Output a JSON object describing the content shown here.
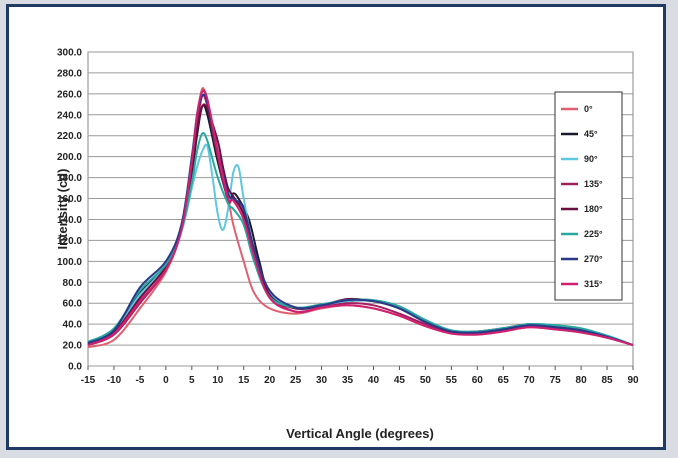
{
  "chart_data": {
    "type": "line",
    "title": "",
    "xlabel": "Vertical Angle (degrees)",
    "ylabel": "Intensity (cd)",
    "xlim": [
      -15,
      90
    ],
    "ylim": [
      0,
      300
    ],
    "x_ticks": [
      -15,
      -10,
      -5,
      0,
      5,
      10,
      15,
      20,
      25,
      30,
      35,
      40,
      45,
      50,
      55,
      60,
      65,
      70,
      75,
      80,
      85,
      90
    ],
    "y_ticks": [
      "0.0",
      "20.0",
      "40.0",
      "60.0",
      "80.0",
      "100.0",
      "120.0",
      "140.0",
      "160.0",
      "180.0",
      "200.0",
      "220.0",
      "240.0",
      "260.0",
      "280.0",
      "300.0"
    ],
    "grid": "horizontal",
    "legend": "right",
    "series": [
      {
        "name": "0°",
        "color": "#e06070",
        "points": [
          [
            -15,
            18
          ],
          [
            -10,
            25
          ],
          [
            -5,
            55
          ],
          [
            0,
            90
          ],
          [
            3,
            130
          ],
          [
            5,
            190
          ],
          [
            6,
            235
          ],
          [
            7,
            265
          ],
          [
            8,
            250
          ],
          [
            10,
            200
          ],
          [
            12,
            160
          ],
          [
            13,
            135
          ],
          [
            15,
            100
          ],
          [
            17,
            70
          ],
          [
            20,
            55
          ],
          [
            25,
            50
          ],
          [
            30,
            55
          ],
          [
            35,
            58
          ],
          [
            40,
            55
          ],
          [
            45,
            48
          ],
          [
            50,
            38
          ],
          [
            55,
            32
          ],
          [
            60,
            30
          ],
          [
            65,
            33
          ],
          [
            70,
            37
          ],
          [
            75,
            35
          ],
          [
            80,
            32
          ],
          [
            85,
            27
          ],
          [
            90,
            20
          ]
        ]
      },
      {
        "name": "45°",
        "color": "#1a1a2e",
        "points": [
          [
            -15,
            22
          ],
          [
            -10,
            35
          ],
          [
            -5,
            70
          ],
          [
            0,
            95
          ],
          [
            3,
            130
          ],
          [
            5,
            185
          ],
          [
            6,
            220
          ],
          [
            7,
            248
          ],
          [
            8,
            240
          ],
          [
            10,
            195
          ],
          [
            12,
            160
          ],
          [
            13,
            165
          ],
          [
            14,
            160
          ],
          [
            16,
            140
          ],
          [
            18,
            100
          ],
          [
            20,
            70
          ],
          [
            25,
            55
          ],
          [
            30,
            58
          ],
          [
            35,
            62
          ],
          [
            40,
            62
          ],
          [
            45,
            55
          ],
          [
            50,
            42
          ],
          [
            55,
            33
          ],
          [
            60,
            32
          ],
          [
            65,
            35
          ],
          [
            70,
            40
          ],
          [
            75,
            38
          ],
          [
            80,
            35
          ],
          [
            85,
            28
          ],
          [
            90,
            20
          ]
        ]
      },
      {
        "name": "90°",
        "color": "#5ec8e0",
        "points": [
          [
            -15,
            22
          ],
          [
            -10,
            33
          ],
          [
            -5,
            68
          ],
          [
            0,
            95
          ],
          [
            3,
            128
          ],
          [
            5,
            170
          ],
          [
            6,
            190
          ],
          [
            7,
            205
          ],
          [
            8,
            210
          ],
          [
            9,
            180
          ],
          [
            10,
            145
          ],
          [
            11,
            130
          ],
          [
            12,
            150
          ],
          [
            13,
            185
          ],
          [
            14,
            190
          ],
          [
            15,
            160
          ],
          [
            17,
            110
          ],
          [
            20,
            70
          ],
          [
            25,
            55
          ],
          [
            30,
            57
          ],
          [
            35,
            62
          ],
          [
            40,
            62
          ],
          [
            45,
            56
          ],
          [
            50,
            43
          ],
          [
            55,
            34
          ],
          [
            60,
            33
          ],
          [
            65,
            36
          ],
          [
            70,
            40
          ],
          [
            75,
            39
          ],
          [
            80,
            36
          ],
          [
            85,
            29
          ],
          [
            90,
            20
          ]
        ]
      },
      {
        "name": "135°",
        "color": "#a02060",
        "points": [
          [
            -15,
            20
          ],
          [
            -10,
            30
          ],
          [
            -5,
            60
          ],
          [
            0,
            92
          ],
          [
            3,
            130
          ],
          [
            5,
            190
          ],
          [
            6,
            230
          ],
          [
            7,
            258
          ],
          [
            8,
            248
          ],
          [
            10,
            200
          ],
          [
            12,
            158
          ],
          [
            13,
            160
          ],
          [
            15,
            145
          ],
          [
            17,
            110
          ],
          [
            20,
            68
          ],
          [
            25,
            52
          ],
          [
            30,
            56
          ],
          [
            35,
            60
          ],
          [
            40,
            58
          ],
          [
            45,
            50
          ],
          [
            50,
            40
          ],
          [
            55,
            32
          ],
          [
            60,
            31
          ],
          [
            65,
            34
          ],
          [
            70,
            38
          ],
          [
            75,
            36
          ],
          [
            80,
            33
          ],
          [
            85,
            27
          ],
          [
            90,
            20
          ]
        ]
      },
      {
        "name": "180°",
        "color": "#6a1040",
        "points": [
          [
            -15,
            21
          ],
          [
            -10,
            32
          ],
          [
            -5,
            65
          ],
          [
            0,
            95
          ],
          [
            3,
            132
          ],
          [
            5,
            190
          ],
          [
            6,
            225
          ],
          [
            7,
            248
          ],
          [
            8,
            245
          ],
          [
            10,
            215
          ],
          [
            11,
            190
          ],
          [
            12,
            170
          ],
          [
            13,
            162
          ],
          [
            15,
            145
          ],
          [
            17,
            110
          ],
          [
            20,
            68
          ],
          [
            25,
            55
          ],
          [
            30,
            58
          ],
          [
            35,
            64
          ],
          [
            40,
            62
          ],
          [
            45,
            55
          ],
          [
            50,
            42
          ],
          [
            55,
            33
          ],
          [
            60,
            33
          ],
          [
            65,
            36
          ],
          [
            70,
            40
          ],
          [
            75,
            38
          ],
          [
            80,
            35
          ],
          [
            85,
            28
          ],
          [
            90,
            20
          ]
        ]
      },
      {
        "name": "225°",
        "color": "#2aa8a0",
        "points": [
          [
            -15,
            23
          ],
          [
            -10,
            36
          ],
          [
            -5,
            72
          ],
          [
            0,
            97
          ],
          [
            3,
            130
          ],
          [
            5,
            175
          ],
          [
            6,
            205
          ],
          [
            7,
            222
          ],
          [
            8,
            215
          ],
          [
            10,
            180
          ],
          [
            12,
            155
          ],
          [
            13,
            150
          ],
          [
            15,
            135
          ],
          [
            17,
            100
          ],
          [
            20,
            66
          ],
          [
            25,
            56
          ],
          [
            30,
            59
          ],
          [
            35,
            63
          ],
          [
            40,
            63
          ],
          [
            45,
            57
          ],
          [
            50,
            44
          ],
          [
            55,
            34
          ],
          [
            60,
            33
          ],
          [
            65,
            36
          ],
          [
            70,
            40
          ],
          [
            75,
            39
          ],
          [
            80,
            36
          ],
          [
            85,
            29
          ],
          [
            90,
            20
          ]
        ]
      },
      {
        "name": "270°",
        "color": "#2a3a8a",
        "points": [
          [
            -15,
            22
          ],
          [
            -10,
            34
          ],
          [
            -5,
            75
          ],
          [
            0,
            100
          ],
          [
            3,
            135
          ],
          [
            5,
            200
          ],
          [
            6,
            240
          ],
          [
            7,
            258
          ],
          [
            8,
            252
          ],
          [
            10,
            205
          ],
          [
            12,
            165
          ],
          [
            13,
            160
          ],
          [
            15,
            150
          ],
          [
            17,
            112
          ],
          [
            20,
            72
          ],
          [
            25,
            56
          ],
          [
            30,
            58
          ],
          [
            35,
            63
          ],
          [
            40,
            62
          ],
          [
            45,
            55
          ],
          [
            50,
            42
          ],
          [
            55,
            33
          ],
          [
            60,
            32
          ],
          [
            65,
            35
          ],
          [
            70,
            39
          ],
          [
            75,
            37
          ],
          [
            80,
            34
          ],
          [
            85,
            28
          ],
          [
            90,
            20
          ]
        ]
      },
      {
        "name": "315°",
        "color": "#d02070",
        "points": [
          [
            -15,
            20
          ],
          [
            -10,
            31
          ],
          [
            -5,
            62
          ],
          [
            0,
            92
          ],
          [
            3,
            130
          ],
          [
            5,
            195
          ],
          [
            6,
            240
          ],
          [
            7,
            262
          ],
          [
            8,
            255
          ],
          [
            10,
            205
          ],
          [
            12,
            160
          ],
          [
            13,
            158
          ],
          [
            15,
            140
          ],
          [
            17,
            105
          ],
          [
            20,
            65
          ],
          [
            25,
            52
          ],
          [
            30,
            56
          ],
          [
            35,
            58
          ],
          [
            40,
            55
          ],
          [
            45,
            48
          ],
          [
            50,
            38
          ],
          [
            55,
            31
          ],
          [
            60,
            30
          ],
          [
            65,
            33
          ],
          [
            70,
            37
          ],
          [
            75,
            35
          ],
          [
            80,
            32
          ],
          [
            85,
            27
          ],
          [
            90,
            20
          ]
        ]
      }
    ]
  }
}
